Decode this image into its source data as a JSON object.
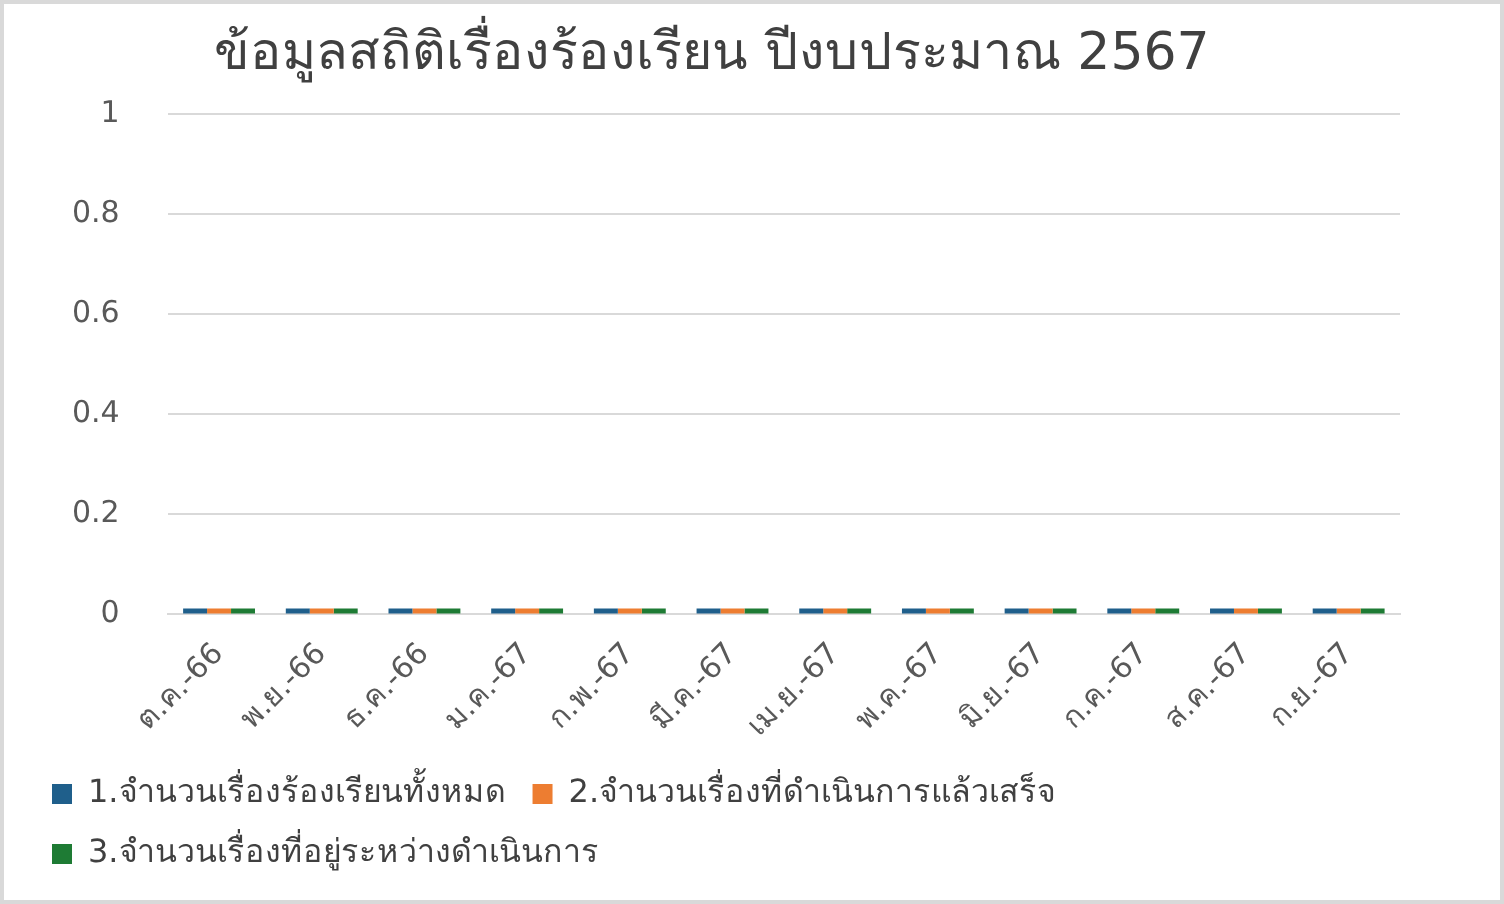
{
  "chart_data": {
    "type": "bar",
    "title": "ข้อมูลสถิติเรื่องร้องเรียน ปีงบประมาณ 2567",
    "categories": [
      "ต.ค.-66",
      "พ.ย.-66",
      "ธ.ค.-66",
      "ม.ค.-67",
      "ก.พ.-67",
      "มี.ค.-67",
      "เม.ย.-67",
      "พ.ค.-67",
      "มิ.ย.-67",
      "ก.ค.-67",
      "ส.ค.-67",
      "ก.ย.-67"
    ],
    "series": [
      {
        "name": "1.จำนวนเรื่องร้องเรียนทั้งหมด",
        "color": "#1f5f8b",
        "values": [
          0,
          0,
          0,
          0,
          0,
          0,
          0,
          0,
          0,
          0,
          0,
          0
        ]
      },
      {
        "name": "2.จำนวนเรื่องที่ดำเนินการแล้วเสร็จ",
        "color": "#ed7d31",
        "values": [
          0,
          0,
          0,
          0,
          0,
          0,
          0,
          0,
          0,
          0,
          0,
          0
        ]
      },
      {
        "name": "3.จำนวนเรื่องที่อยู่ระหว่างดำเนินการ",
        "color": "#1e7b34",
        "values": [
          0,
          0,
          0,
          0,
          0,
          0,
          0,
          0,
          0,
          0,
          0,
          0
        ]
      }
    ],
    "ylim": [
      0,
      1
    ],
    "yticks": [
      0,
      0.2,
      0.4,
      0.6,
      0.8,
      1
    ],
    "grid": "y",
    "legend": "bottom"
  }
}
